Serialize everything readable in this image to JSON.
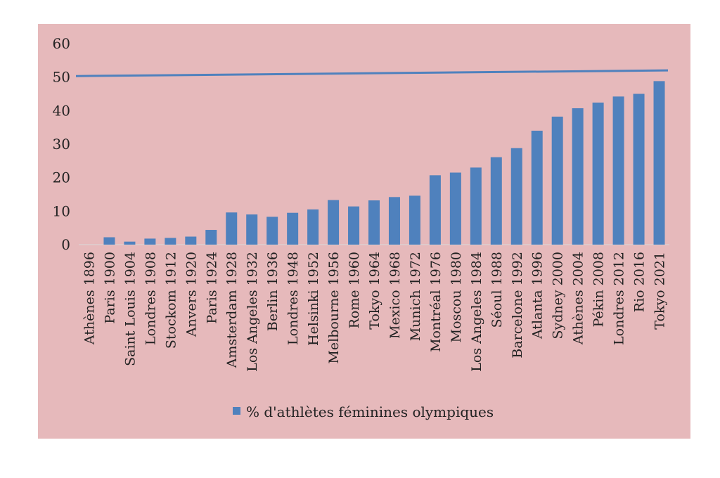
{
  "chart_data": {
    "type": "bar",
    "categories": [
      "Athènes 1896",
      "Paris 1900",
      "Saint Louis 1904",
      "Londres 1908",
      "Stockom 1912",
      "Anvers 1920",
      "Paris 1924",
      "Amsterdam 1928",
      "Los Angeles 1932",
      "Berlin 1936",
      "Londres 1948",
      "Helsinki 1952",
      "Melbourne 1956",
      "Rome 1960",
      "Tokyo 1964",
      "Mexico 1968",
      "Munich 1972",
      "Montréal 1976",
      "Moscou 1980",
      "Los Angeles 1984",
      "Séoul 1988",
      "Barcelone 1992",
      "Atlanta 1996",
      "Sydney 2000",
      "Athènes 2004",
      "Pékin 2008",
      "Londres 2012",
      "Rio 2016",
      "Tokyo 2021"
    ],
    "series": [
      {
        "name": "% d'athlètes féminines olympiques",
        "values": [
          0,
          2.2,
          0.9,
          1.8,
          2.0,
          2.4,
          4.4,
          9.6,
          9.0,
          8.3,
          9.5,
          10.5,
          13.3,
          11.4,
          13.2,
          14.2,
          14.6,
          20.7,
          21.5,
          23.0,
          26.1,
          28.8,
          34.0,
          38.2,
          40.7,
          42.4,
          44.2,
          45.0,
          48.8
        ]
      }
    ],
    "reference_line": {
      "start": 50.3,
      "end": 52.0
    },
    "yticks": [
      "0",
      "10",
      "20",
      "30",
      "40",
      "50",
      "60"
    ],
    "ylim": [
      0,
      60
    ],
    "legend_position": "bottom",
    "grid": false,
    "colors": {
      "bar": "#4f81bd",
      "line": "#4f81bd",
      "plot_background": "#e6b9bb",
      "page_background": "#ffffff"
    }
  }
}
